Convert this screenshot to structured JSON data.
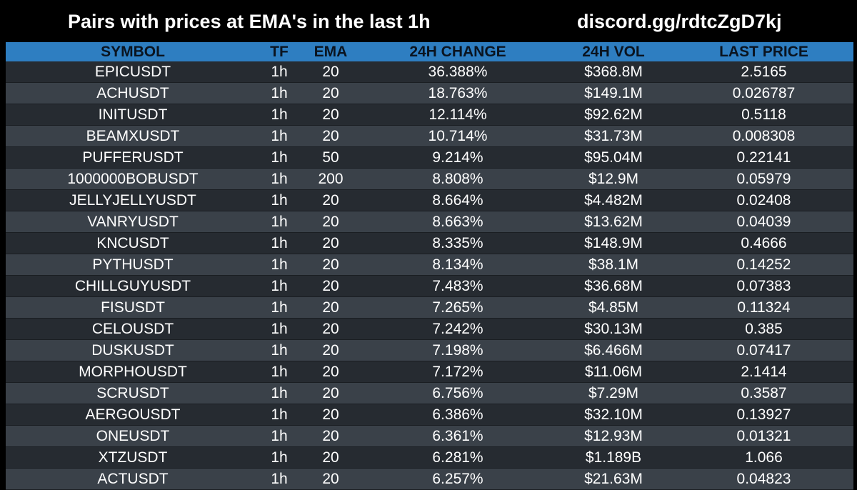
{
  "header": {
    "title": "Pairs with prices at EMA's in the last 1h",
    "link": "discord.gg/rdtcZgD7kj"
  },
  "colors": {
    "background": "#000000",
    "header_row": "#2e7ec1",
    "row_dark": "#262b31",
    "row_light": "#3a4149"
  },
  "table": {
    "columns": [
      "SYMBOL",
      "TF",
      "EMA",
      "24H CHANGE",
      "24H VOL",
      "LAST PRICE"
    ],
    "rows": [
      [
        "EPICUSDT",
        "1h",
        "20",
        "36.388%",
        "$368.8M",
        "2.5165"
      ],
      [
        "ACHUSDT",
        "1h",
        "20",
        "18.763%",
        "$149.1M",
        "0.026787"
      ],
      [
        "INITUSDT",
        "1h",
        "20",
        "12.114%",
        "$92.62M",
        "0.5118"
      ],
      [
        "BEAMXUSDT",
        "1h",
        "20",
        "10.714%",
        "$31.73M",
        "0.008308"
      ],
      [
        "PUFFERUSDT",
        "1h",
        "50",
        "9.214%",
        "$95.04M",
        "0.22141"
      ],
      [
        "1000000BOBUSDT",
        "1h",
        "200",
        "8.808%",
        "$12.9M",
        "0.05979"
      ],
      [
        "JELLYJELLYUSDT",
        "1h",
        "20",
        "8.664%",
        "$4.482M",
        "0.02408"
      ],
      [
        "VANRYUSDT",
        "1h",
        "20",
        "8.663%",
        "$13.62M",
        "0.04039"
      ],
      [
        "KNCUSDT",
        "1h",
        "20",
        "8.335%",
        "$148.9M",
        "0.4666"
      ],
      [
        "PYTHUSDT",
        "1h",
        "20",
        "8.134%",
        "$38.1M",
        "0.14252"
      ],
      [
        "CHILLGUYUSDT",
        "1h",
        "20",
        "7.483%",
        "$36.68M",
        "0.07383"
      ],
      [
        "FISUSDT",
        "1h",
        "20",
        "7.265%",
        "$4.85M",
        "0.11324"
      ],
      [
        "CELOUSDT",
        "1h",
        "20",
        "7.242%",
        "$30.13M",
        "0.385"
      ],
      [
        "DUSKUSDT",
        "1h",
        "20",
        "7.198%",
        "$6.466M",
        "0.07417"
      ],
      [
        "MORPHOUSDT",
        "1h",
        "20",
        "7.172%",
        "$11.06M",
        "2.1414"
      ],
      [
        "SCRUSDT",
        "1h",
        "20",
        "6.756%",
        "$7.29M",
        "0.3587"
      ],
      [
        "AERGOUSDT",
        "1h",
        "20",
        "6.386%",
        "$32.10M",
        "0.13927"
      ],
      [
        "ONEUSDT",
        "1h",
        "20",
        "6.361%",
        "$12.93M",
        "0.01321"
      ],
      [
        "XTZUSDT",
        "1h",
        "20",
        "6.281%",
        "$1.189B",
        "1.066"
      ],
      [
        "ACTUSDT",
        "1h",
        "20",
        "6.257%",
        "$21.63M",
        "0.04823"
      ]
    ]
  }
}
